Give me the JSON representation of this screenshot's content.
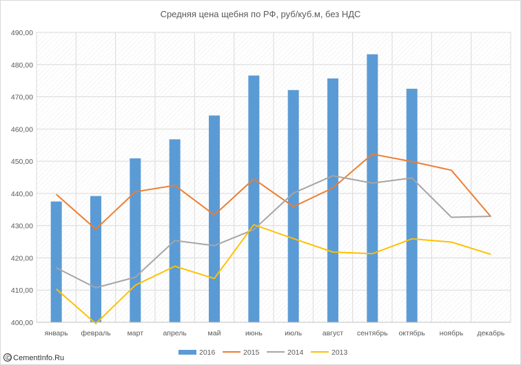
{
  "chart_data": {
    "type": "bar",
    "title": "Средняя цена щебня по РФ, руб/куб.м, без НДС",
    "categories": [
      "январь",
      "февраль",
      "март",
      "апрель",
      "май",
      "июнь",
      "июль",
      "август",
      "сентябрь",
      "октябрь",
      "ноябрь",
      "декабрь"
    ],
    "ylim": [
      400,
      490
    ],
    "yticks": [
      "400,00",
      "410,00",
      "420,00",
      "430,00",
      "440,00",
      "450,00",
      "460,00",
      "470,00",
      "480,00",
      "490,00"
    ],
    "ytick_values": [
      400,
      410,
      420,
      430,
      440,
      450,
      460,
      470,
      480,
      490
    ],
    "grid": true,
    "legend_position": "bottom",
    "series": [
      {
        "name": "2016",
        "type": "bar",
        "color": "#5b9bd5",
        "values": [
          437.5,
          439.2,
          450.9,
          456.8,
          464.2,
          476.6,
          472.1,
          475.7,
          483.2,
          472.5,
          null,
          null
        ]
      },
      {
        "name": "2015",
        "type": "line",
        "color": "#ed7d31",
        "values": [
          439.7,
          428.9,
          440.5,
          442.5,
          433.3,
          444.5,
          435.9,
          441.7,
          452.2,
          449.9,
          447.2,
          432.8
        ]
      },
      {
        "name": "2014",
        "type": "line",
        "color": "#a5a5a5",
        "values": [
          416.9,
          410.7,
          414.0,
          425.4,
          423.8,
          428.8,
          440.1,
          445.5,
          443.2,
          444.8,
          432.6,
          432.9
        ]
      },
      {
        "name": "2013",
        "type": "line",
        "color": "#ffc000",
        "values": [
          410.3,
          399.6,
          411.5,
          417.4,
          413.6,
          430.3,
          426.0,
          421.8,
          421.3,
          425.9,
          424.9,
          421.1
        ]
      }
    ]
  },
  "watermark": {
    "text": "© CementInfo.Ru"
  }
}
